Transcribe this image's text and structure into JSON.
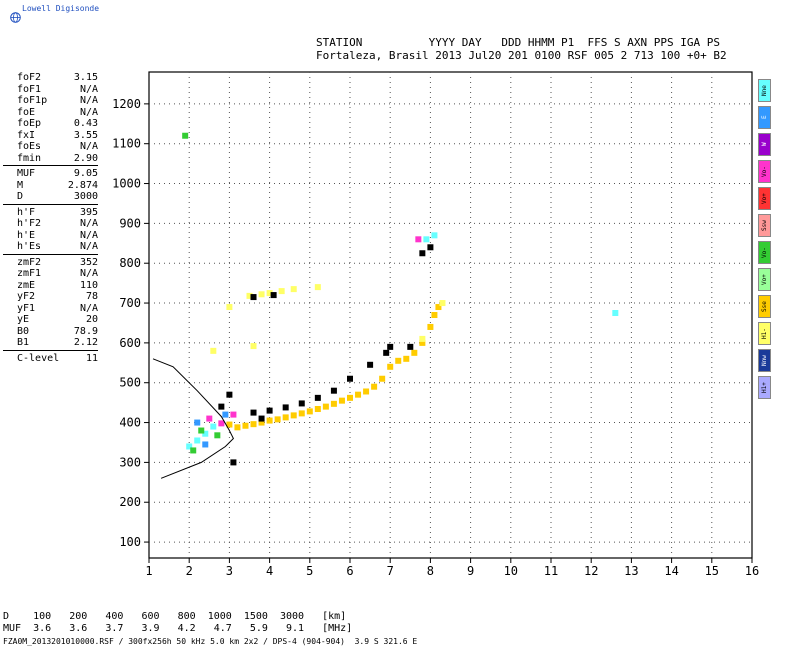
{
  "brand": "Lowell Digisonde",
  "header": {
    "line1": "STATION          YYYY DAY   DDD HHMM P1  FFS S AXN PPS IGA PS",
    "line2": "Fortaleza, Brasil 2013 Jul20 201 0100 RSF 005 2 713 100 +0+ B2"
  },
  "params": [
    [
      {
        "k": "foF2",
        "v": "3.15"
      },
      {
        "k": "foF1",
        "v": "N/A"
      },
      {
        "k": "foF1p",
        "v": "N/A"
      },
      {
        "k": "foE",
        "v": "N/A"
      },
      {
        "k": "foEp",
        "v": "0.43"
      },
      {
        "k": "fxI",
        "v": "3.55"
      },
      {
        "k": "foEs",
        "v": "N/A"
      },
      {
        "k": "fmin",
        "v": "2.90"
      }
    ],
    [
      {
        "k": "MUF",
        "v": "9.05"
      },
      {
        "k": "M",
        "v": "2.874"
      },
      {
        "k": "D",
        "v": "3000"
      }
    ],
    [
      {
        "k": "h'F",
        "v": "395"
      },
      {
        "k": "h'F2",
        "v": "N/A"
      },
      {
        "k": "h'E",
        "v": "N/A"
      },
      {
        "k": "h'Es",
        "v": "N/A"
      }
    ],
    [
      {
        "k": "zmF2",
        "v": "352"
      },
      {
        "k": "zmF1",
        "v": "N/A"
      },
      {
        "k": "zmE",
        "v": "110"
      },
      {
        "k": "yF2",
        "v": "78"
      },
      {
        "k": "yF1",
        "v": "N/A"
      },
      {
        "k": "yE",
        "v": "20"
      },
      {
        "k": "B0",
        "v": "78.9"
      },
      {
        "k": "B1",
        "v": "2.12"
      }
    ],
    [
      {
        "k": "C-level",
        "v": "11"
      }
    ]
  ],
  "legend": [
    {
      "label": "Nne",
      "color": "#66ffff"
    },
    {
      "label": "E",
      "color": "#3399ff"
    },
    {
      "label": "W",
      "color": "#9900cc"
    },
    {
      "label": "Vo-",
      "color": "#ff33cc"
    },
    {
      "label": "Vo+",
      "color": "#ff3333"
    },
    {
      "label": "Ssw",
      "color": "#ff9999"
    },
    {
      "label": "Vo-",
      "color": "#33cc33"
    },
    {
      "label": "Vo+",
      "color": "#99ff99"
    },
    {
      "label": "Sse",
      "color": "#ffcc00"
    },
    {
      "label": "H1-",
      "color": "#ffff66"
    },
    {
      "label": "Nnw",
      "color": "#1a3a99"
    },
    {
      "label": "H1+",
      "color": "#aaaaff"
    }
  ],
  "footer": {
    "line1": "D    100   200   400   600   800  1000  1500  3000   [km]",
    "line2": "MUF  3.6   3.6   3.7   3.9   4.2   4.7   5.9   9.1   [MHz]",
    "line3": "FZA0M_2013201010000.RSF / 300fx256h 50 kHz 5.0 km 2x2 / DPS-4 (904-904)  3.9 S 321.6 E"
  },
  "chart_data": {
    "type": "scatter",
    "xlabel": "",
    "ylabel": "",
    "xlim": [
      1,
      16
    ],
    "ylim": [
      60,
      1280
    ],
    "x_ticks": [
      1,
      2,
      3,
      4,
      5,
      6,
      7,
      8,
      9,
      10,
      11,
      12,
      13,
      14,
      15,
      16
    ],
    "y_ticks": [
      100,
      200,
      300,
      400,
      500,
      600,
      700,
      800,
      900,
      1000,
      1100,
      1200
    ],
    "grid": true,
    "series": [
      {
        "color": "#ffcc00",
        "points": [
          [
            3.0,
            395
          ],
          [
            3.2,
            388
          ],
          [
            3.4,
            392
          ],
          [
            3.6,
            396
          ],
          [
            3.8,
            400
          ],
          [
            4.0,
            405
          ],
          [
            4.2,
            408
          ],
          [
            4.4,
            413
          ],
          [
            4.6,
            418
          ],
          [
            4.8,
            423
          ],
          [
            5.0,
            428
          ],
          [
            5.2,
            434
          ],
          [
            5.4,
            440
          ],
          [
            5.6,
            447
          ],
          [
            5.8,
            455
          ],
          [
            6.0,
            462
          ],
          [
            6.2,
            470
          ],
          [
            6.4,
            478
          ],
          [
            6.6,
            490
          ],
          [
            6.8,
            510
          ],
          [
            7.0,
            540
          ],
          [
            7.2,
            555
          ],
          [
            7.4,
            560
          ],
          [
            7.6,
            575
          ],
          [
            7.8,
            600
          ],
          [
            8.0,
            640
          ],
          [
            8.1,
            670
          ],
          [
            8.2,
            690
          ]
        ]
      },
      {
        "color": "#ffff66",
        "points": [
          [
            3.5,
            718
          ],
          [
            3.8,
            722
          ],
          [
            4.0,
            725
          ],
          [
            4.3,
            730
          ],
          [
            4.6,
            735
          ],
          [
            5.2,
            740
          ],
          [
            3.0,
            690
          ],
          [
            2.6,
            580
          ],
          [
            3.6,
            592
          ],
          [
            8.3,
            700
          ],
          [
            7.8,
            610
          ]
        ]
      },
      {
        "color": "#000000",
        "points": [
          [
            3.6,
            425
          ],
          [
            4.0,
            430
          ],
          [
            4.4,
            438
          ],
          [
            4.8,
            448
          ],
          [
            5.2,
            462
          ],
          [
            5.6,
            480
          ],
          [
            6.0,
            510
          ],
          [
            6.5,
            545
          ],
          [
            6.9,
            575
          ],
          [
            7.0,
            590
          ],
          [
            7.5,
            590
          ],
          [
            3.8,
            410
          ],
          [
            2.8,
            440
          ],
          [
            3.0,
            470
          ],
          [
            3.1,
            300
          ],
          [
            7.8,
            825
          ],
          [
            8.0,
            840
          ],
          [
            3.6,
            715
          ],
          [
            4.1,
            720
          ]
        ]
      },
      {
        "color": "#66ffff",
        "points": [
          [
            2.0,
            340
          ],
          [
            2.2,
            355
          ],
          [
            2.4,
            372
          ],
          [
            2.6,
            390
          ],
          [
            7.9,
            860
          ],
          [
            8.1,
            870
          ],
          [
            12.6,
            675
          ]
        ]
      },
      {
        "color": "#ff33cc",
        "points": [
          [
            2.5,
            410
          ],
          [
            2.8,
            398
          ],
          [
            3.1,
            420
          ],
          [
            7.7,
            860
          ]
        ]
      },
      {
        "color": "#33cc33",
        "points": [
          [
            2.1,
            330
          ],
          [
            2.3,
            380
          ],
          [
            2.7,
            368
          ],
          [
            1.9,
            1120
          ]
        ]
      },
      {
        "color": "#3399ff",
        "points": [
          [
            2.4,
            345
          ],
          [
            2.9,
            420
          ],
          [
            2.2,
            400
          ]
        ]
      }
    ],
    "curves": [
      {
        "name": "profile",
        "color": "#000000",
        "points": [
          [
            1.3,
            260
          ],
          [
            2.3,
            300
          ],
          [
            2.9,
            340
          ],
          [
            3.1,
            360
          ],
          [
            3.0,
            380
          ],
          [
            2.8,
            415
          ],
          [
            2.2,
            480
          ],
          [
            1.6,
            540
          ],
          [
            1.1,
            560
          ]
        ]
      }
    ]
  }
}
